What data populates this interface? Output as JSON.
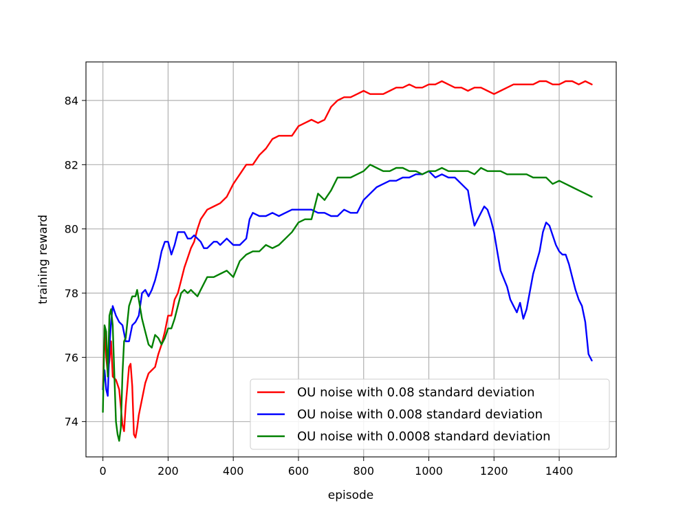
{
  "chart_data": {
    "type": "line",
    "title": "",
    "xlabel": "episode",
    "ylabel": "training reward",
    "xlim": [
      -52,
      1575
    ],
    "ylim": [
      72.9,
      85.2
    ],
    "xticks": [
      0,
      200,
      400,
      600,
      800,
      1000,
      1200,
      1400
    ],
    "yticks": [
      74,
      76,
      78,
      80,
      82,
      84
    ],
    "grid": true,
    "legend_position": "lower-right",
    "series": [
      {
        "name": "OU noise with 0.08 standard deviation",
        "color": "#ff0000",
        "x": [
          0,
          5,
          10,
          15,
          20,
          25,
          30,
          40,
          50,
          60,
          65,
          70,
          80,
          85,
          90,
          95,
          100,
          105,
          110,
          120,
          130,
          140,
          150,
          160,
          170,
          180,
          190,
          200,
          210,
          220,
          230,
          240,
          250,
          260,
          270,
          280,
          290,
          300,
          320,
          340,
          360,
          380,
          400,
          420,
          440,
          450,
          460,
          480,
          500,
          520,
          540,
          560,
          580,
          600,
          620,
          640,
          660,
          680,
          700,
          720,
          740,
          760,
          780,
          800,
          820,
          840,
          860,
          880,
          900,
          920,
          940,
          960,
          980,
          1000,
          1020,
          1040,
          1060,
          1080,
          1100,
          1120,
          1140,
          1160,
          1180,
          1200,
          1220,
          1240,
          1260,
          1280,
          1300,
          1320,
          1340,
          1360,
          1380,
          1400,
          1420,
          1440,
          1460,
          1480,
          1500
        ],
        "values": [
          75.0,
          76.9,
          76.0,
          75.5,
          75.9,
          76.5,
          75.4,
          75.3,
          75.0,
          73.9,
          73.7,
          74.5,
          75.7,
          75.8,
          75.1,
          73.6,
          73.5,
          73.8,
          74.2,
          74.7,
          75.2,
          75.5,
          75.6,
          75.7,
          76.1,
          76.4,
          76.8,
          77.3,
          77.3,
          77.8,
          78.0,
          78.4,
          78.8,
          79.1,
          79.4,
          79.6,
          80.0,
          80.3,
          80.6,
          80.7,
          80.8,
          81.0,
          81.4,
          81.7,
          82.0,
          82.0,
          82.0,
          82.3,
          82.5,
          82.8,
          82.9,
          82.9,
          82.9,
          83.2,
          83.3,
          83.4,
          83.3,
          83.4,
          83.8,
          84.0,
          84.1,
          84.1,
          84.2,
          84.3,
          84.2,
          84.2,
          84.2,
          84.3,
          84.4,
          84.4,
          84.5,
          84.4,
          84.4,
          84.5,
          84.5,
          84.6,
          84.5,
          84.4,
          84.4,
          84.3,
          84.4,
          84.4,
          84.3,
          84.2,
          84.3,
          84.4,
          84.5,
          84.5,
          84.5,
          84.5,
          84.6,
          84.6,
          84.5,
          84.5,
          84.6,
          84.6,
          84.5,
          84.6,
          84.5
        ]
      },
      {
        "name": "OU noise with 0.008 standard deviation",
        "color": "#0000ff",
        "x": [
          0,
          5,
          10,
          15,
          20,
          25,
          30,
          40,
          50,
          60,
          70,
          80,
          90,
          100,
          110,
          120,
          130,
          140,
          150,
          160,
          170,
          180,
          190,
          200,
          210,
          220,
          230,
          240,
          250,
          260,
          270,
          280,
          290,
          300,
          310,
          320,
          330,
          340,
          350,
          360,
          380,
          400,
          420,
          440,
          450,
          460,
          480,
          500,
          520,
          540,
          560,
          580,
          600,
          620,
          640,
          660,
          680,
          700,
          720,
          740,
          760,
          780,
          800,
          820,
          840,
          860,
          880,
          900,
          920,
          940,
          960,
          980,
          1000,
          1020,
          1040,
          1060,
          1080,
          1100,
          1120,
          1130,
          1140,
          1160,
          1170,
          1180,
          1190,
          1200,
          1210,
          1220,
          1240,
          1250,
          1260,
          1270,
          1280,
          1290,
          1300,
          1320,
          1340,
          1350,
          1360,
          1370,
          1380,
          1390,
          1400,
          1410,
          1420,
          1430,
          1440,
          1450,
          1460,
          1470,
          1480,
          1490,
          1500
        ],
        "values": [
          75.0,
          75.6,
          75.0,
          74.8,
          76.3,
          77.1,
          77.6,
          77.3,
          77.1,
          77.0,
          76.5,
          76.5,
          77.0,
          77.1,
          77.3,
          78.0,
          78.1,
          77.9,
          78.1,
          78.4,
          78.8,
          79.3,
          79.6,
          79.6,
          79.2,
          79.5,
          79.9,
          79.9,
          79.9,
          79.7,
          79.7,
          79.8,
          79.7,
          79.6,
          79.4,
          79.4,
          79.5,
          79.6,
          79.6,
          79.5,
          79.7,
          79.5,
          79.5,
          79.7,
          80.3,
          80.5,
          80.4,
          80.4,
          80.5,
          80.4,
          80.5,
          80.6,
          80.6,
          80.6,
          80.6,
          80.5,
          80.5,
          80.4,
          80.4,
          80.6,
          80.5,
          80.5,
          80.9,
          81.1,
          81.3,
          81.4,
          81.5,
          81.5,
          81.6,
          81.6,
          81.7,
          81.7,
          81.8,
          81.6,
          81.7,
          81.6,
          81.6,
          81.4,
          81.2,
          80.6,
          80.1,
          80.5,
          80.7,
          80.6,
          80.3,
          79.9,
          79.3,
          78.7,
          78.2,
          77.8,
          77.6,
          77.4,
          77.7,
          77.2,
          77.5,
          78.6,
          79.3,
          79.9,
          80.2,
          80.1,
          79.8,
          79.5,
          79.3,
          79.2,
          79.2,
          78.9,
          78.5,
          78.1,
          77.8,
          77.6,
          77.1,
          76.1,
          75.9
        ]
      },
      {
        "name": "OU noise with 0.0008 standard deviation",
        "color": "#008000",
        "x": [
          0,
          5,
          10,
          15,
          20,
          25,
          30,
          35,
          40,
          45,
          50,
          55,
          60,
          65,
          70,
          80,
          90,
          100,
          105,
          110,
          120,
          130,
          140,
          150,
          160,
          170,
          180,
          190,
          200,
          210,
          220,
          230,
          240,
          250,
          260,
          270,
          280,
          290,
          300,
          320,
          340,
          360,
          380,
          400,
          420,
          440,
          460,
          480,
          500,
          520,
          540,
          560,
          580,
          600,
          620,
          640,
          660,
          680,
          700,
          720,
          740,
          760,
          780,
          800,
          820,
          840,
          860,
          880,
          900,
          920,
          940,
          960,
          980,
          1000,
          1020,
          1040,
          1060,
          1080,
          1100,
          1120,
          1140,
          1160,
          1180,
          1200,
          1220,
          1240,
          1260,
          1280,
          1300,
          1320,
          1340,
          1360,
          1380,
          1400,
          1420,
          1440,
          1460,
          1480,
          1500
        ],
        "values": [
          74.3,
          77.0,
          76.8,
          75.4,
          77.3,
          77.5,
          77.0,
          75.5,
          74.0,
          73.6,
          73.4,
          73.8,
          75.5,
          76.5,
          76.6,
          77.6,
          77.9,
          77.9,
          78.1,
          77.8,
          77.2,
          76.8,
          76.4,
          76.3,
          76.7,
          76.6,
          76.4,
          76.6,
          76.9,
          76.9,
          77.2,
          77.6,
          78.0,
          78.1,
          78.0,
          78.1,
          78.0,
          77.9,
          78.1,
          78.5,
          78.5,
          78.6,
          78.7,
          78.5,
          79.0,
          79.2,
          79.3,
          79.3,
          79.5,
          79.4,
          79.5,
          79.7,
          79.9,
          80.2,
          80.3,
          80.3,
          81.1,
          80.9,
          81.2,
          81.6,
          81.6,
          81.6,
          81.7,
          81.8,
          82.0,
          81.9,
          81.8,
          81.8,
          81.9,
          81.9,
          81.8,
          81.8,
          81.7,
          81.8,
          81.8,
          81.9,
          81.8,
          81.8,
          81.8,
          81.8,
          81.7,
          81.9,
          81.8,
          81.8,
          81.8,
          81.7,
          81.7,
          81.7,
          81.7,
          81.6,
          81.6,
          81.6,
          81.4,
          81.5,
          81.4,
          81.3,
          81.2,
          81.1,
          81.0
        ]
      }
    ]
  }
}
